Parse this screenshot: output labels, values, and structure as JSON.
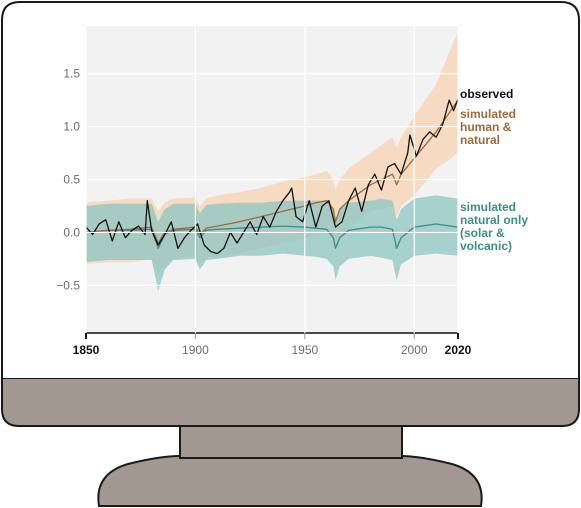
{
  "colors": {
    "monitor_frame": "#ffffff",
    "monitor_base": "#a39791",
    "outline": "#1a1a1a",
    "plot_background": "#f2f2f2",
    "observed": "#111111",
    "human_natural": "#a06a3c",
    "human_natural_band": "#f6d3b4",
    "natural_only": "#3d8d89",
    "natural_only_band": "#8cc6c1"
  },
  "chart_data": {
    "type": "line",
    "title": "",
    "xlabel": "",
    "ylabel": "",
    "xlim": [
      1850,
      2020
    ],
    "ylim": [
      -0.95,
      1.95
    ],
    "grid": true,
    "legend_placement": "right, direct labels",
    "x_ticks": [
      {
        "value": 1850,
        "label": "1850",
        "bold": true
      },
      {
        "value": 1900,
        "label": "1900",
        "bold": false
      },
      {
        "value": 1950,
        "label": "1950",
        "bold": false
      },
      {
        "value": 2000,
        "label": "2000",
        "bold": false
      },
      {
        "value": 2020,
        "label": "2020",
        "bold": true
      }
    ],
    "y_ticks": [
      {
        "value": 1.5,
        "label": "1.5"
      },
      {
        "value": 1.0,
        "label": "1.0"
      },
      {
        "value": 0.5,
        "label": "0.5"
      },
      {
        "value": 0.0,
        "label": "0.0"
      },
      {
        "value": -0.5,
        "label": "−0.5"
      }
    ],
    "series": [
      {
        "key": "observed",
        "name_lines": [
          "observed"
        ],
        "color": "#111111",
        "x": [
          1850,
          1853,
          1856,
          1859,
          1862,
          1865,
          1868,
          1871,
          1874,
          1877,
          1878,
          1880,
          1883,
          1886,
          1889,
          1892,
          1895,
          1898,
          1901,
          1904,
          1907,
          1910,
          1913,
          1916,
          1919,
          1922,
          1925,
          1928,
          1931,
          1934,
          1937,
          1940,
          1943,
          1944,
          1946,
          1949,
          1952,
          1955,
          1958,
          1961,
          1964,
          1967,
          1970,
          1973,
          1976,
          1979,
          1982,
          1985,
          1988,
          1991,
          1994,
          1997,
          1998,
          2001,
          2004,
          2007,
          2010,
          2013,
          2016,
          2018,
          2020
        ],
        "y": [
          0.05,
          -0.02,
          0.08,
          0.12,
          -0.08,
          0.1,
          -0.05,
          0.02,
          0.06,
          -0.02,
          0.3,
          0.02,
          -0.12,
          -0.02,
          0.1,
          -0.15,
          -0.05,
          0.02,
          0.08,
          -0.12,
          -0.18,
          -0.2,
          -0.15,
          0.0,
          -0.1,
          0.0,
          0.1,
          -0.02,
          0.15,
          0.05,
          0.2,
          0.3,
          0.38,
          0.42,
          0.15,
          0.1,
          0.3,
          0.05,
          0.25,
          0.3,
          0.05,
          0.1,
          0.3,
          0.42,
          0.2,
          0.45,
          0.55,
          0.4,
          0.62,
          0.65,
          0.55,
          0.75,
          0.92,
          0.72,
          0.88,
          0.95,
          0.9,
          1.02,
          1.25,
          1.15,
          1.26
        ]
      },
      {
        "key": "human_natural",
        "name_lines": [
          "simulated",
          "human &",
          "natural"
        ],
        "color": "#a06a3c",
        "band_color": "#f6d3b4",
        "x": [
          1850,
          1860,
          1870,
          1880,
          1883,
          1886,
          1890,
          1900,
          1902,
          1905,
          1910,
          1920,
          1930,
          1940,
          1950,
          1955,
          1960,
          1963,
          1964,
          1966,
          1970,
          1980,
          1990,
          1992,
          1994,
          2000,
          2010,
          2020
        ],
        "y": [
          0.0,
          0.02,
          0.03,
          0.05,
          -0.1,
          0.0,
          0.03,
          0.05,
          -0.02,
          0.04,
          0.06,
          0.1,
          0.15,
          0.2,
          0.25,
          0.28,
          0.3,
          0.22,
          0.1,
          0.22,
          0.3,
          0.45,
          0.55,
          0.45,
          0.55,
          0.7,
          0.95,
          1.25
        ],
        "band_low": [
          -0.3,
          -0.28,
          -0.28,
          -0.25,
          -0.4,
          -0.3,
          -0.25,
          -0.22,
          -0.3,
          -0.24,
          -0.22,
          -0.2,
          -0.15,
          -0.1,
          -0.05,
          -0.02,
          0.0,
          -0.05,
          -0.15,
          -0.05,
          0.05,
          0.2,
          0.25,
          0.15,
          0.25,
          0.35,
          0.6,
          0.75
        ],
        "band_high": [
          0.28,
          0.3,
          0.32,
          0.32,
          0.2,
          0.28,
          0.32,
          0.33,
          0.25,
          0.32,
          0.35,
          0.38,
          0.42,
          0.48,
          0.52,
          0.55,
          0.58,
          0.5,
          0.4,
          0.5,
          0.6,
          0.75,
          0.9,
          0.8,
          0.9,
          1.1,
          1.4,
          1.9
        ]
      },
      {
        "key": "natural_only",
        "name_lines": [
          "simulated",
          "natural only",
          "(solar &",
          "volcanic)"
        ],
        "color": "#3d8d89",
        "band_color": "#8cc6c1",
        "x": [
          1850,
          1860,
          1870,
          1880,
          1883,
          1886,
          1890,
          1900,
          1902,
          1905,
          1910,
          1920,
          1930,
          1940,
          1950,
          1955,
          1960,
          1963,
          1964,
          1966,
          1970,
          1980,
          1985,
          1990,
          1992,
          1994,
          2000,
          2010,
          2020
        ],
        "y": [
          0.0,
          0.02,
          0.02,
          0.03,
          -0.15,
          -0.02,
          0.02,
          0.03,
          -0.05,
          0.02,
          0.03,
          0.04,
          0.05,
          0.06,
          0.05,
          0.04,
          0.03,
          -0.05,
          -0.15,
          -0.05,
          0.02,
          0.05,
          0.05,
          0.03,
          -0.15,
          -0.05,
          0.05,
          0.08,
          0.05
        ],
        "band_low": [
          -0.28,
          -0.26,
          -0.26,
          -0.26,
          -0.55,
          -0.35,
          -0.26,
          -0.25,
          -0.35,
          -0.26,
          -0.25,
          -0.22,
          -0.22,
          -0.2,
          -0.22,
          -0.23,
          -0.25,
          -0.32,
          -0.45,
          -0.32,
          -0.25,
          -0.22,
          -0.24,
          -0.26,
          -0.45,
          -0.3,
          -0.22,
          -0.2,
          -0.22
        ],
        "band_high": [
          0.25,
          0.27,
          0.27,
          0.27,
          0.1,
          0.22,
          0.27,
          0.27,
          0.18,
          0.26,
          0.27,
          0.28,
          0.28,
          0.3,
          0.3,
          0.3,
          0.3,
          0.22,
          0.12,
          0.22,
          0.28,
          0.3,
          0.32,
          0.3,
          0.12,
          0.22,
          0.32,
          0.35,
          0.32
        ]
      }
    ]
  }
}
